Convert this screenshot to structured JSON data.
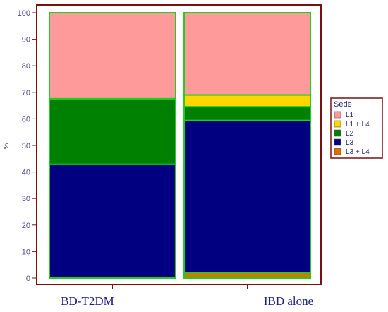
{
  "chart_data": {
    "type": "bar",
    "stacked": true,
    "percent": true,
    "ylabel": "%",
    "ylim": [
      0,
      100
    ],
    "yticks": [
      0,
      10,
      20,
      30,
      40,
      50,
      60,
      70,
      80,
      90,
      100
    ],
    "categories": [
      "BD-T2DM",
      "IBD alone"
    ],
    "legend_title": "Sede",
    "legend_position": "right",
    "series": [
      {
        "name": "L1",
        "color": "#ff9a9a",
        "values": [
          32.4,
          31.0
        ]
      },
      {
        "name": "L1 + L4",
        "color": "#ffd700",
        "values": [
          0,
          4.4
        ]
      },
      {
        "name": "L2",
        "color": "#008000",
        "values": [
          24.7,
          5.2
        ]
      },
      {
        "name": "L3",
        "color": "#000080",
        "values": [
          42.9,
          57.4
        ]
      },
      {
        "name": "L3 + L4",
        "color": "#e07000",
        "values": [
          0,
          2.0
        ]
      }
    ],
    "bar_border_color": "#22cc22",
    "frame_color": "#7a1010"
  }
}
